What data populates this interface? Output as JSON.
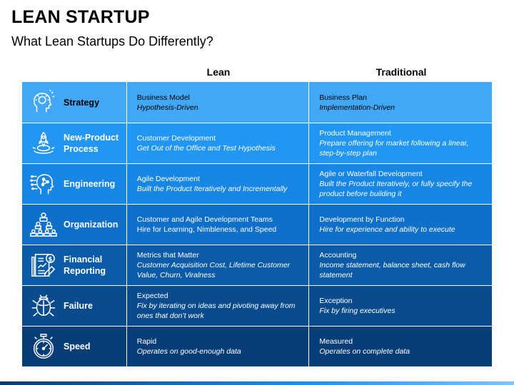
{
  "header": {
    "title": "LEAN STARTUP",
    "subtitle": "What Lean Startups Do Differently?"
  },
  "columns": {
    "lean": "Lean",
    "traditional": "Traditional"
  },
  "rows": [
    {
      "icon": "brain-idea-icon",
      "label": "Strategy",
      "lean_head": "Business Model",
      "lean_desc": "Hypothesis-Driven",
      "trad_head": "Business Plan",
      "trad_desc": "Implementation-Driven"
    },
    {
      "icon": "rocket-launch-icon",
      "label": "New-Product Process",
      "lean_head": "Customer Development",
      "lean_desc": "Get Out of the Office and Test Hypothesis",
      "trad_head": "Product Management",
      "trad_desc": "Prepare offering for market following a linear, step-by-step plan"
    },
    {
      "icon": "ai-head-icon",
      "label": "Engineering",
      "lean_head": "Agile Development",
      "lean_desc": "Built the Product Iteratively and Incrementally",
      "trad_head": "Agile or Waterfall Development",
      "trad_desc": "Built the Product Iteratively, or fully specify the product before building it"
    },
    {
      "icon": "org-chart-icon",
      "label": "Organization",
      "lean_head": "Customer and Agile Development Teams",
      "lean_desc": "Hire for Learning, Nimbleness, and Speed",
      "trad_head": "Development by Function",
      "trad_desc": "Hire for experience and ability to execute"
    },
    {
      "icon": "financial-report-icon",
      "label": "Financial Reporting",
      "lean_head": "Metrics that Matter",
      "lean_desc": "Customer Acquisition Cost, Lifetime Customer Value, Churn, Viralness",
      "trad_head": "Accounting",
      "trad_desc": "Income statement, balance sheet, cash flow statement"
    },
    {
      "icon": "bug-icon",
      "label": "Failure",
      "lean_head": "Expected",
      "lean_desc": "Fix by iterating on ideas and pivoting away from ones that don’t work",
      "trad_head": "Exception",
      "trad_desc": "Fix by firing executives"
    },
    {
      "icon": "stopwatch-icon",
      "label": "Speed",
      "lean_head": "Rapid",
      "lean_desc": "Operates on good-enough data",
      "trad_head": "Measured",
      "trad_desc": "Operates on complete data"
    }
  ],
  "colors": {
    "row_1": "#42a7f5",
    "row_2": "#2196f3",
    "row_3": "#1886e4",
    "row_4": "#0f6fc9",
    "row_5": "#0c5ba8",
    "row_6": "#0a4b8e",
    "row_7": "#083d78"
  }
}
